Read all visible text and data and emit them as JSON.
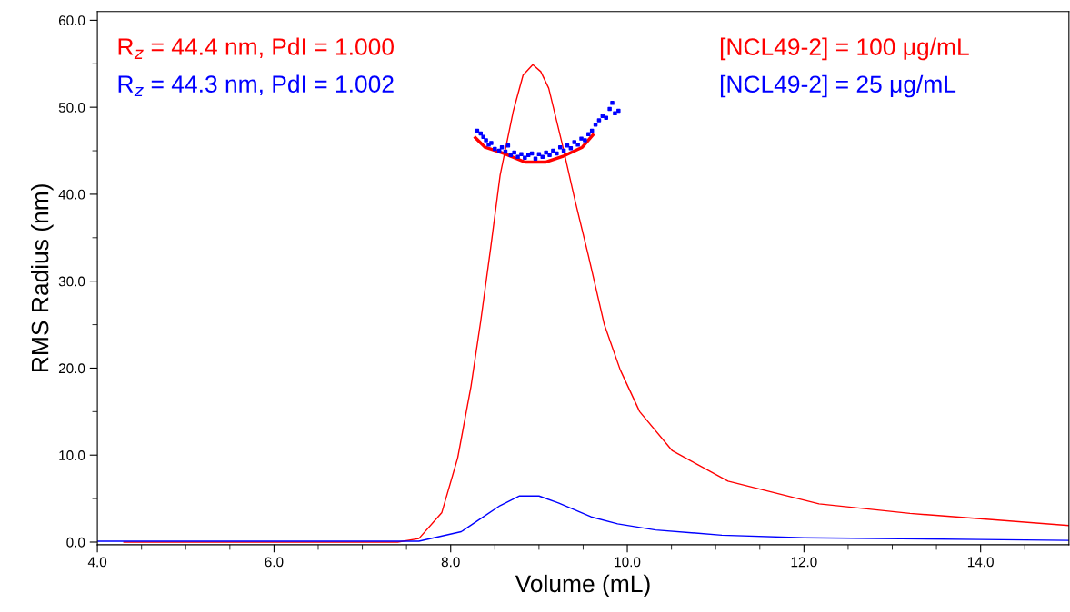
{
  "chart_data": {
    "type": "line",
    "xlabel": "Volume (mL)",
    "ylabel": "RMS Radius (nm)",
    "xlim": [
      4,
      15
    ],
    "ylim": [
      -0.3,
      61
    ],
    "xticks": [
      {
        "value": 4,
        "label": "4.0"
      },
      {
        "value": 4.5,
        "label": null
      },
      {
        "value": 5,
        "label": null
      },
      {
        "value": 5.5,
        "label": null
      },
      {
        "value": 6,
        "label": "6.0"
      },
      {
        "value": 6.5,
        "label": null
      },
      {
        "value": 7,
        "label": null
      },
      {
        "value": 7.5,
        "label": null
      },
      {
        "value": 8,
        "label": "8.0"
      },
      {
        "value": 8.5,
        "label": null
      },
      {
        "value": 9,
        "label": null
      },
      {
        "value": 9.5,
        "label": null
      },
      {
        "value": 10,
        "label": "10.0"
      },
      {
        "value": 10.5,
        "label": null
      },
      {
        "value": 11,
        "label": null
      },
      {
        "value": 11.5,
        "label": null
      },
      {
        "value": 12,
        "label": "12.0"
      },
      {
        "value": 12.5,
        "label": null
      },
      {
        "value": 13,
        "label": null
      },
      {
        "value": 13.5,
        "label": null
      },
      {
        "value": 14,
        "label": "14.0"
      },
      {
        "value": 14.5,
        "label": null
      }
    ],
    "yticks": [
      {
        "value": 0,
        "label": "0.0"
      },
      {
        "value": 5,
        "label": null
      },
      {
        "value": 10,
        "label": "10.0"
      },
      {
        "value": 15,
        "label": null
      },
      {
        "value": 20,
        "label": "20.0"
      },
      {
        "value": 25,
        "label": null
      },
      {
        "value": 30,
        "label": "30.0"
      },
      {
        "value": 35,
        "label": null
      },
      {
        "value": 40,
        "label": "40.0"
      },
      {
        "value": 45,
        "label": null
      },
      {
        "value": 50,
        "label": "50.0"
      },
      {
        "value": 55,
        "label": null
      },
      {
        "value": 60,
        "label": "60.0"
      }
    ],
    "grid": false,
    "annotations": [
      "[NCL49-2] = 100 μg/mL",
      "[NCL49-2] = 25 μg/mL",
      "R$_{z}$ = 44.4 nm, PdI = 1.000",
      "R$_{z}$ = 44.3 nm, PdI = 1.002"
    ],
    "series": [
      {
        "color": "#ff0000",
        "x": [
          4.3,
          7.0,
          7.4,
          7.64,
          7.9,
          8.08,
          8.23,
          8.34,
          8.45,
          8.56,
          8.71,
          8.82,
          8.93,
          9.02,
          9.11,
          9.26,
          9.41,
          9.56,
          9.74,
          9.92,
          10.14,
          10.51,
          11.14,
          12.17,
          13.2,
          15.0
        ],
        "values": [
          0,
          0,
          0,
          0.4,
          3.4,
          9.7,
          17.9,
          25.4,
          33.6,
          42.2,
          49.6,
          53.7,
          54.9,
          54.1,
          52.2,
          45.9,
          39.2,
          32.9,
          25.0,
          19.8,
          15.0,
          10.5,
          7.0,
          4.4,
          3.3,
          1.9
        ]
      },
      {
        "color": "#0000ff",
        "x": [
          4.0,
          7.0,
          7.64,
          8.12,
          8.34,
          8.56,
          8.78,
          9.0,
          9.22,
          9.59,
          9.89,
          10.32,
          11.07,
          12.0,
          14.0,
          15.0
        ],
        "values": [
          0.1,
          0.1,
          0.1,
          1.2,
          2.7,
          4.2,
          5.3,
          5.3,
          4.5,
          2.9,
          2.1,
          1.4,
          0.8,
          0.5,
          0.3,
          0.2
        ]
      },
      {
        "color": "#ff0000",
        "x": [
          8.28,
          8.39,
          8.6,
          8.84,
          9.08,
          9.28,
          9.49,
          9.61
        ],
        "values": [
          46.5,
          45.4,
          44.7,
          43.7,
          43.7,
          44.4,
          45.4,
          46.8
        ]
      },
      {
        "color": "#0000ff",
        "type": "scatter",
        "marker": "square",
        "x": [
          8.3,
          8.34,
          8.37,
          8.4,
          8.43,
          8.46,
          8.5,
          8.55,
          8.58,
          8.62,
          8.65,
          8.68,
          8.72,
          8.76,
          8.8,
          8.84,
          8.88,
          8.92,
          8.96,
          9.0,
          9.04,
          9.08,
          9.12,
          9.16,
          9.2,
          9.24,
          9.28,
          9.32,
          9.36,
          9.4,
          9.44,
          9.48,
          9.52,
          9.56,
          9.6,
          9.64,
          9.68,
          9.72,
          9.76,
          9.8,
          9.83,
          9.86,
          9.9
        ],
        "values": [
          47.3,
          47.0,
          46.6,
          46.2,
          45.7,
          45.9,
          45.2,
          45.0,
          45.4,
          44.9,
          45.6,
          44.5,
          44.8,
          44.3,
          44.6,
          44.2,
          44.5,
          44.7,
          44.1,
          44.6,
          44.3,
          44.8,
          44.5,
          45.0,
          44.7,
          45.4,
          45.0,
          45.6,
          45.3,
          46.0,
          45.7,
          46.4,
          46.2,
          46.9,
          47.3,
          48.0,
          48.5,
          49.0,
          48.8,
          49.8,
          50.5,
          49.3,
          49.6
        ]
      }
    ]
  }
}
